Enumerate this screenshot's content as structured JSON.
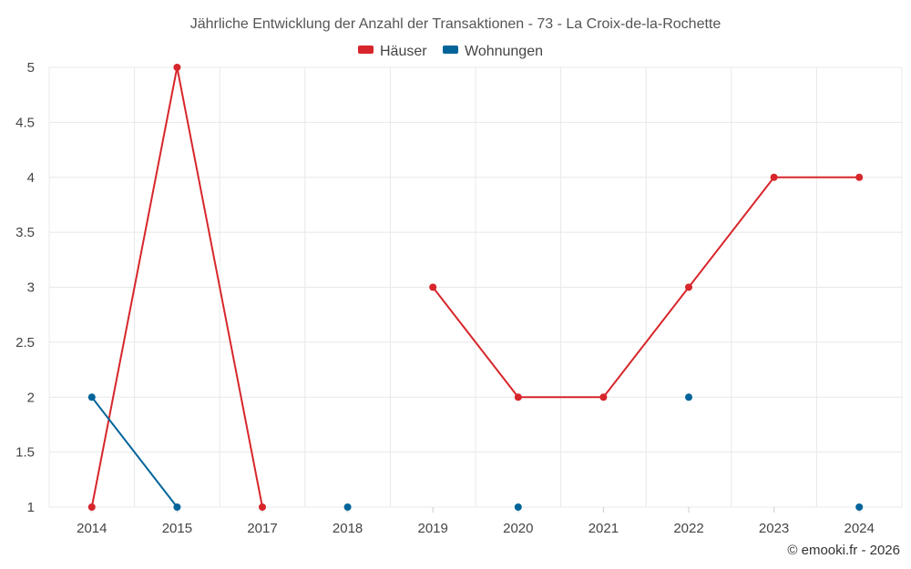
{
  "chart_data": {
    "type": "line",
    "title": "Jährliche Entwicklung der Anzahl der Transaktionen - 73 - La Croix-de-la-Rochette",
    "categories": [
      "2014",
      "2015",
      "2017",
      "2018",
      "2019",
      "2020",
      "2021",
      "2022",
      "2023",
      "2024"
    ],
    "ylim": [
      1,
      5
    ],
    "yticks": [
      "1",
      "1.5",
      "2",
      "2.5",
      "3",
      "3.5",
      "4",
      "4.5",
      "5"
    ],
    "grid": true,
    "legend_position": "top-center",
    "series": [
      {
        "name": "Häuser",
        "color": "#d7262b",
        "values": [
          1,
          5,
          1,
          null,
          3,
          2,
          2,
          3,
          4,
          4
        ]
      },
      {
        "name": "Wohnungen",
        "color": "#00649a",
        "values": [
          2,
          1,
          null,
          1,
          null,
          1,
          null,
          2,
          null,
          1
        ]
      }
    ]
  },
  "credit": "© emooki.fr - 2026"
}
